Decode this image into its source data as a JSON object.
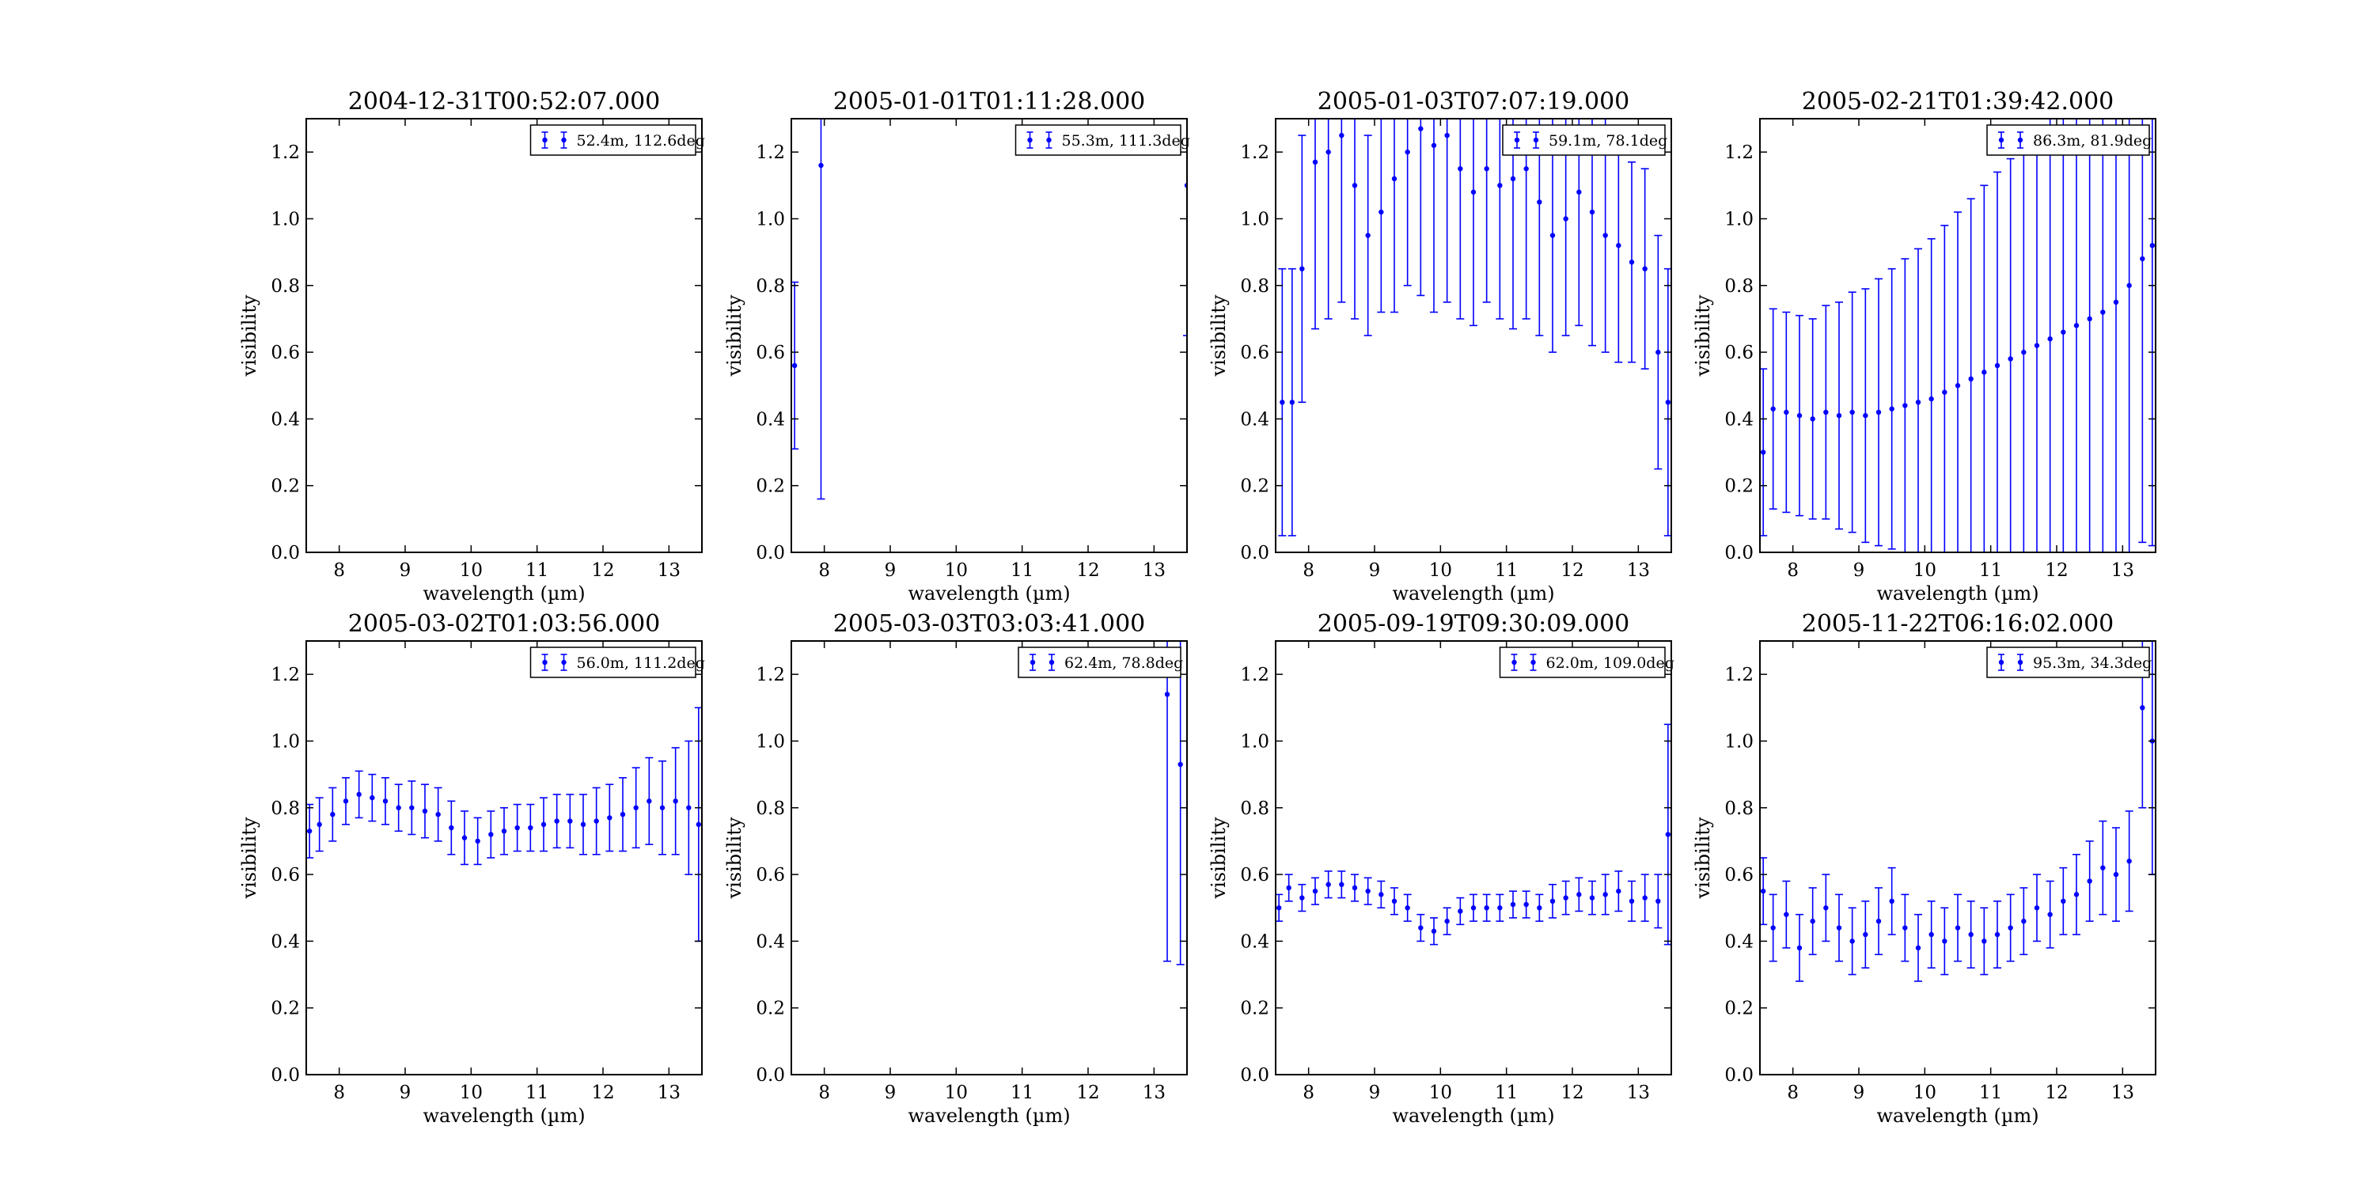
{
  "figure": {
    "xlabel": "wavelength (µm)",
    "ylabel": "visibility",
    "series_color": "#0000ff",
    "xlim": [
      7.5,
      13.5
    ],
    "ylim": [
      0.0,
      1.3
    ],
    "xticks": [
      8,
      9,
      10,
      11,
      12,
      13
    ],
    "yticks": [
      0.0,
      0.2,
      0.4,
      0.6,
      0.8,
      1.0,
      1.2
    ],
    "ytick_labels": [
      "0.0",
      "0.2",
      "0.4",
      "0.6",
      "0.8",
      "1.0",
      "1.2"
    ]
  },
  "chart_data": [
    {
      "type": "scatter",
      "title": "2004-12-31T00:52:07.000",
      "xlabel": "wavelength (µm)",
      "ylabel": "visibility",
      "legend": "52.4m, 112.6deg",
      "legend_position": "top-right",
      "xlim": [
        7.5,
        13.5
      ],
      "ylim": [
        0.0,
        1.3
      ],
      "grid": false,
      "errorbars": true,
      "x": [],
      "y": [],
      "yerr": []
    },
    {
      "type": "scatter",
      "title": "2005-01-01T01:11:28.000",
      "xlabel": "wavelength (µm)",
      "ylabel": "visibility",
      "legend": "55.3m, 111.3deg",
      "legend_position": "top-right",
      "xlim": [
        7.5,
        13.5
      ],
      "ylim": [
        0.0,
        1.3
      ],
      "grid": false,
      "errorbars": true,
      "x": [
        7.55,
        7.95,
        13.5
      ],
      "y": [
        0.56,
        1.16,
        1.1
      ],
      "yerr": [
        0.25,
        1.0,
        0.45
      ]
    },
    {
      "type": "scatter",
      "title": "2005-01-03T07:07:19.000",
      "xlabel": "wavelength (µm)",
      "ylabel": "visibility",
      "legend": "59.1m, 78.1deg",
      "legend_position": "top-right",
      "xlim": [
        7.5,
        13.5
      ],
      "ylim": [
        0.0,
        1.3
      ],
      "grid": false,
      "errorbars": true,
      "x": [
        7.6,
        7.75,
        7.9,
        8.1,
        8.3,
        8.5,
        8.7,
        8.9,
        9.1,
        9.3,
        9.5,
        9.7,
        9.9,
        10.1,
        10.3,
        10.5,
        10.7,
        10.9,
        11.1,
        11.3,
        11.5,
        11.7,
        11.9,
        12.1,
        12.3,
        12.5,
        12.7,
        12.9,
        13.1,
        13.3,
        13.45
      ],
      "y": [
        0.45,
        0.45,
        0.85,
        1.17,
        1.2,
        1.25,
        1.1,
        0.95,
        1.02,
        1.12,
        1.2,
        1.27,
        1.22,
        1.25,
        1.15,
        1.08,
        1.15,
        1.1,
        1.12,
        1.15,
        1.05,
        0.95,
        1.0,
        1.08,
        1.02,
        0.95,
        0.92,
        0.87,
        0.85,
        0.6,
        0.45
      ],
      "yerr": [
        0.4,
        0.4,
        0.4,
        0.5,
        0.5,
        0.5,
        0.4,
        0.3,
        0.3,
        0.4,
        0.4,
        0.5,
        0.5,
        0.5,
        0.45,
        0.4,
        0.4,
        0.4,
        0.45,
        0.45,
        0.4,
        0.35,
        0.35,
        0.4,
        0.4,
        0.35,
        0.35,
        0.3,
        0.3,
        0.35,
        0.4
      ]
    },
    {
      "type": "scatter",
      "title": "2005-02-21T01:39:42.000",
      "xlabel": "wavelength (µm)",
      "ylabel": "visibility",
      "legend": "86.3m, 81.9deg",
      "legend_position": "top-right",
      "xlim": [
        7.5,
        13.5
      ],
      "ylim": [
        0.0,
        1.3
      ],
      "grid": false,
      "errorbars": true,
      "x": [
        7.55,
        7.7,
        7.9,
        8.1,
        8.3,
        8.5,
        8.7,
        8.9,
        9.1,
        9.3,
        9.5,
        9.7,
        9.9,
        10.1,
        10.3,
        10.5,
        10.7,
        10.9,
        11.1,
        11.3,
        11.5,
        11.7,
        11.9,
        12.1,
        12.3,
        12.5,
        12.7,
        12.9,
        13.1,
        13.3,
        13.45
      ],
      "y": [
        0.3,
        0.43,
        0.42,
        0.41,
        0.4,
        0.42,
        0.41,
        0.42,
        0.41,
        0.42,
        0.43,
        0.44,
        0.45,
        0.46,
        0.48,
        0.5,
        0.52,
        0.54,
        0.56,
        0.58,
        0.6,
        0.62,
        0.64,
        0.66,
        0.68,
        0.7,
        0.72,
        0.75,
        0.8,
        0.88,
        0.92
      ],
      "yerr": [
        0.25,
        0.3,
        0.3,
        0.3,
        0.3,
        0.32,
        0.34,
        0.36,
        0.38,
        0.4,
        0.42,
        0.44,
        0.46,
        0.48,
        0.5,
        0.52,
        0.54,
        0.56,
        0.58,
        0.6,
        0.62,
        0.64,
        0.66,
        0.68,
        0.7,
        0.72,
        0.74,
        0.76,
        0.8,
        0.85,
        0.9
      ]
    },
    {
      "type": "scatter",
      "title": "2005-03-02T01:03:56.000",
      "xlabel": "wavelength (µm)",
      "ylabel": "visibility",
      "legend": "56.0m, 111.2deg",
      "legend_position": "top-right",
      "xlim": [
        7.5,
        13.5
      ],
      "ylim": [
        0.0,
        1.3
      ],
      "grid": false,
      "errorbars": true,
      "x": [
        7.55,
        7.7,
        7.9,
        8.1,
        8.3,
        8.5,
        8.7,
        8.9,
        9.1,
        9.3,
        9.5,
        9.7,
        9.9,
        10.1,
        10.3,
        10.5,
        10.7,
        10.9,
        11.1,
        11.3,
        11.5,
        11.7,
        11.9,
        12.1,
        12.3,
        12.5,
        12.7,
        12.9,
        13.1,
        13.3,
        13.45
      ],
      "y": [
        0.73,
        0.75,
        0.78,
        0.82,
        0.84,
        0.83,
        0.82,
        0.8,
        0.8,
        0.79,
        0.78,
        0.74,
        0.71,
        0.7,
        0.72,
        0.73,
        0.74,
        0.74,
        0.75,
        0.76,
        0.76,
        0.75,
        0.76,
        0.77,
        0.78,
        0.8,
        0.82,
        0.8,
        0.82,
        0.8,
        0.75
      ],
      "yerr": [
        0.08,
        0.08,
        0.08,
        0.07,
        0.07,
        0.07,
        0.07,
        0.07,
        0.08,
        0.08,
        0.08,
        0.08,
        0.08,
        0.07,
        0.07,
        0.07,
        0.07,
        0.07,
        0.08,
        0.08,
        0.08,
        0.09,
        0.1,
        0.1,
        0.11,
        0.12,
        0.13,
        0.14,
        0.16,
        0.2,
        0.35
      ]
    },
    {
      "type": "scatter",
      "title": "2005-03-03T03:03:41.000",
      "xlabel": "wavelength (µm)",
      "ylabel": "visibility",
      "legend": "62.4m, 78.8deg",
      "legend_position": "top-right",
      "xlim": [
        7.5,
        13.5
      ],
      "ylim": [
        0.0,
        1.3
      ],
      "grid": false,
      "errorbars": true,
      "x": [
        13.2,
        13.4
      ],
      "y": [
        1.14,
        0.93
      ],
      "yerr": [
        0.8,
        0.6
      ]
    },
    {
      "type": "scatter",
      "title": "2005-09-19T09:30:09.000",
      "xlabel": "wavelength (µm)",
      "ylabel": "visibility",
      "legend": "62.0m, 109.0deg",
      "legend_position": "top-right",
      "xlim": [
        7.5,
        13.5
      ],
      "ylim": [
        0.0,
        1.3
      ],
      "grid": false,
      "errorbars": true,
      "x": [
        7.55,
        7.7,
        7.9,
        8.1,
        8.3,
        8.5,
        8.7,
        8.9,
        9.1,
        9.3,
        9.5,
        9.7,
        9.9,
        10.1,
        10.3,
        10.5,
        10.7,
        10.9,
        11.1,
        11.3,
        11.5,
        11.7,
        11.9,
        12.1,
        12.3,
        12.5,
        12.7,
        12.9,
        13.1,
        13.3,
        13.45
      ],
      "y": [
        0.5,
        0.56,
        0.53,
        0.55,
        0.57,
        0.57,
        0.56,
        0.55,
        0.54,
        0.52,
        0.5,
        0.44,
        0.43,
        0.46,
        0.49,
        0.5,
        0.5,
        0.5,
        0.51,
        0.51,
        0.5,
        0.52,
        0.53,
        0.54,
        0.53,
        0.54,
        0.55,
        0.52,
        0.53,
        0.52,
        0.72
      ],
      "yerr": [
        0.04,
        0.04,
        0.04,
        0.04,
        0.04,
        0.04,
        0.04,
        0.04,
        0.04,
        0.04,
        0.04,
        0.04,
        0.04,
        0.04,
        0.04,
        0.04,
        0.04,
        0.04,
        0.04,
        0.04,
        0.04,
        0.05,
        0.05,
        0.05,
        0.05,
        0.06,
        0.06,
        0.06,
        0.07,
        0.08,
        0.33
      ]
    },
    {
      "type": "scatter",
      "title": "2005-11-22T06:16:02.000",
      "xlabel": "wavelength (µm)",
      "ylabel": "visibility",
      "legend": "95.3m, 34.3deg",
      "legend_position": "top-right",
      "xlim": [
        7.5,
        13.5
      ],
      "ylim": [
        0.0,
        1.3
      ],
      "grid": false,
      "errorbars": true,
      "x": [
        7.55,
        7.7,
        7.9,
        8.1,
        8.3,
        8.5,
        8.7,
        8.9,
        9.1,
        9.3,
        9.5,
        9.7,
        9.9,
        10.1,
        10.3,
        10.5,
        10.7,
        10.9,
        11.1,
        11.3,
        11.5,
        11.7,
        11.9,
        12.1,
        12.3,
        12.5,
        12.7,
        12.9,
        13.1,
        13.3,
        13.45
      ],
      "y": [
        0.55,
        0.44,
        0.48,
        0.38,
        0.46,
        0.5,
        0.44,
        0.4,
        0.42,
        0.46,
        0.52,
        0.44,
        0.38,
        0.42,
        0.4,
        0.44,
        0.42,
        0.4,
        0.42,
        0.44,
        0.46,
        0.5,
        0.48,
        0.52,
        0.54,
        0.58,
        0.62,
        0.6,
        0.64,
        1.1,
        1.0
      ],
      "yerr": [
        0.1,
        0.1,
        0.1,
        0.1,
        0.1,
        0.1,
        0.1,
        0.1,
        0.1,
        0.1,
        0.1,
        0.1,
        0.1,
        0.1,
        0.1,
        0.1,
        0.1,
        0.1,
        0.1,
        0.1,
        0.1,
        0.1,
        0.1,
        0.1,
        0.12,
        0.12,
        0.14,
        0.14,
        0.15,
        0.3,
        0.4
      ]
    }
  ]
}
